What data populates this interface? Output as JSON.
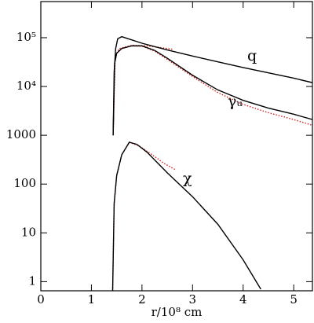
{
  "chart_data": {
    "type": "line",
    "x_label": "r/10⁸ cm",
    "log_y": true,
    "xlim": [
      0,
      5.37
    ],
    "ylim": [
      0.65,
      550000
    ],
    "xticks": [
      0,
      1,
      2,
      3,
      4,
      5
    ],
    "yticks": [
      1,
      10,
      100,
      1000,
      {
        "value": 10000,
        "label": "10⁴"
      },
      {
        "value": 100000,
        "label": "10⁵"
      }
    ],
    "series": [
      {
        "name": "q",
        "color": "#000000",
        "style": "solid",
        "x": [
          1.43,
          1.45,
          1.48,
          1.52,
          1.6,
          1.8,
          2.0,
          2.5,
          3.0,
          3.5,
          4.0,
          4.5,
          5.0,
          5.37
        ],
        "values": [
          1000,
          20000,
          60000,
          95000,
          105000,
          90000,
          77000,
          56000,
          42000,
          32000,
          24500,
          19000,
          14800,
          12000
        ]
      },
      {
        "name": "γᵤ",
        "color": "#000000",
        "style": "solid",
        "x": [
          1.43,
          1.46,
          1.5,
          1.6,
          1.8,
          2.0,
          2.25,
          2.5,
          3.0,
          3.5,
          4.0,
          4.5,
          5.0,
          5.37
        ],
        "values": [
          1000,
          30000,
          48000,
          60000,
          68000,
          68000,
          55000,
          38000,
          17000,
          8500,
          5200,
          3600,
          2700,
          2100
        ]
      },
      {
        "name": "χ",
        "color": "#000000",
        "style": "solid",
        "x": [
          1.42,
          1.45,
          1.5,
          1.6,
          1.75,
          1.9,
          2.1,
          2.5,
          3.0,
          3.5,
          4.0,
          4.35
        ],
        "values": [
          0.65,
          40,
          150,
          400,
          720,
          650,
          450,
          170,
          55,
          15,
          2.8,
          0.7
        ]
      },
      {
        "color": "#d62020",
        "style": "dotted",
        "x": [
          1.43,
          1.47,
          1.55,
          1.8,
          2.1,
          2.4,
          2.6
        ],
        "values": [
          1000,
          40000,
          60000,
          70000,
          68000,
          62000,
          58000
        ]
      },
      {
        "color": "#d62020",
        "style": "dotted",
        "x": [
          1.43,
          1.46,
          1.5,
          1.6,
          1.8,
          2.0,
          2.25,
          2.5,
          3.0,
          3.5,
          4.0,
          4.5,
          5.0,
          5.37
        ],
        "values": [
          1000,
          30000,
          48000,
          60000,
          68000,
          67000,
          53000,
          36000,
          16000,
          7500,
          4300,
          2900,
          2100,
          1600
        ]
      },
      {
        "color": "#d62020",
        "style": "dotted",
        "x": [
          1.42,
          1.45,
          1.5,
          1.6,
          1.75,
          1.95,
          2.2,
          2.45,
          2.65
        ],
        "values": [
          0.65,
          40,
          150,
          400,
          720,
          600,
          400,
          260,
          200
        ]
      }
    ]
  }
}
